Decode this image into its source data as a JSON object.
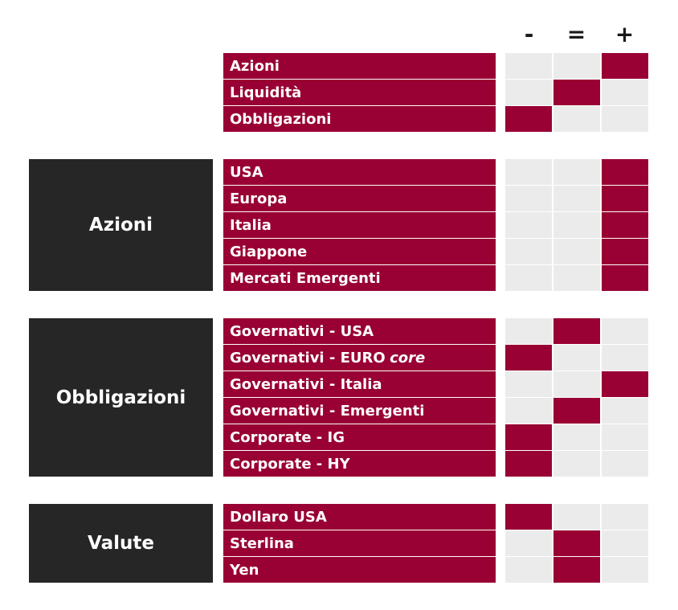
{
  "columns": [
    "-",
    "=",
    "+"
  ],
  "sections": [
    {
      "label": "",
      "rows": [
        {
          "label": "Azioni",
          "suffix": "",
          "rating": "+"
        },
        {
          "label": "Liquidità",
          "suffix": "",
          "rating": "="
        },
        {
          "label": "Obbligazioni",
          "suffix": "",
          "rating": "-"
        }
      ]
    },
    {
      "label": "Azioni",
      "rows": [
        {
          "label": "USA",
          "suffix": "",
          "rating": "+"
        },
        {
          "label": "Europa",
          "suffix": "",
          "rating": "+"
        },
        {
          "label": "Italia",
          "suffix": "",
          "rating": "+"
        },
        {
          "label": "Giappone",
          "suffix": "",
          "rating": "+"
        },
        {
          "label": "Mercati Emergenti",
          "suffix": "",
          "rating": "+"
        }
      ]
    },
    {
      "label": "Obbligazioni",
      "rows": [
        {
          "label": "Governativi - USA",
          "suffix": "",
          "rating": "="
        },
        {
          "label": "Governativi - EURO",
          "suffix": "core",
          "rating": "-"
        },
        {
          "label": "Governativi - Italia",
          "suffix": "",
          "rating": "+"
        },
        {
          "label": "Governativi - Emergenti",
          "suffix": "",
          "rating": "="
        },
        {
          "label": "Corporate - IG",
          "suffix": "",
          "rating": "-"
        },
        {
          "label": "Corporate - HY",
          "suffix": "",
          "rating": "-"
        }
      ]
    },
    {
      "label": "Valute",
      "rows": [
        {
          "label": "Dollaro USA",
          "suffix": "",
          "rating": "-"
        },
        {
          "label": "Sterlina",
          "suffix": "",
          "rating": "="
        },
        {
          "label": "Yen",
          "suffix": "",
          "rating": "="
        }
      ]
    }
  ],
  "colors": {
    "accent": "#990033",
    "label_bg": "#262626",
    "empty_cell": "#ebebeb"
  }
}
